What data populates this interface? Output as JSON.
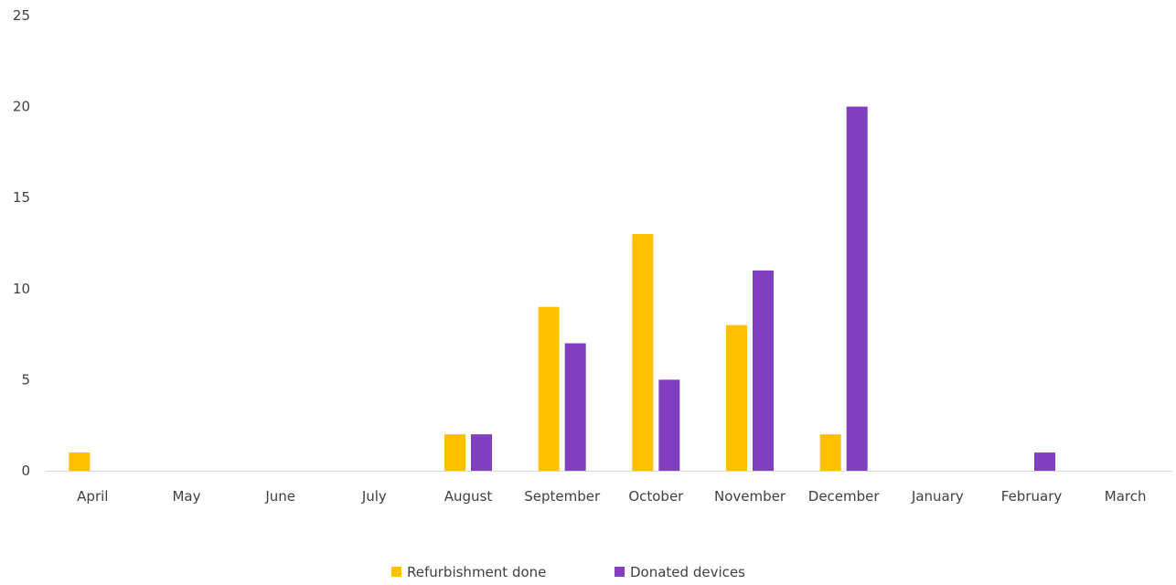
{
  "chart_data": {
    "type": "bar",
    "title": "",
    "xlabel": "",
    "ylabel": "",
    "categories": [
      "April",
      "May",
      "June",
      "July",
      "August",
      "September",
      "October",
      "November",
      "December",
      "January",
      "February",
      "March"
    ],
    "series": [
      {
        "name": "Refurbishment done",
        "color": "#FFC000",
        "values": [
          1,
          0,
          0,
          0,
          2,
          9,
          13,
          8,
          2,
          0,
          0,
          0
        ]
      },
      {
        "name": "Donated devices",
        "color": "#7F3FBF",
        "values": [
          0,
          0,
          0,
          0,
          2,
          7,
          5,
          11,
          20,
          0,
          1,
          0
        ]
      }
    ],
    "ylim": [
      0,
      25
    ],
    "yticks": [
      0,
      5,
      10,
      15,
      20,
      25
    ],
    "grid": false,
    "legend_position": "bottom"
  }
}
